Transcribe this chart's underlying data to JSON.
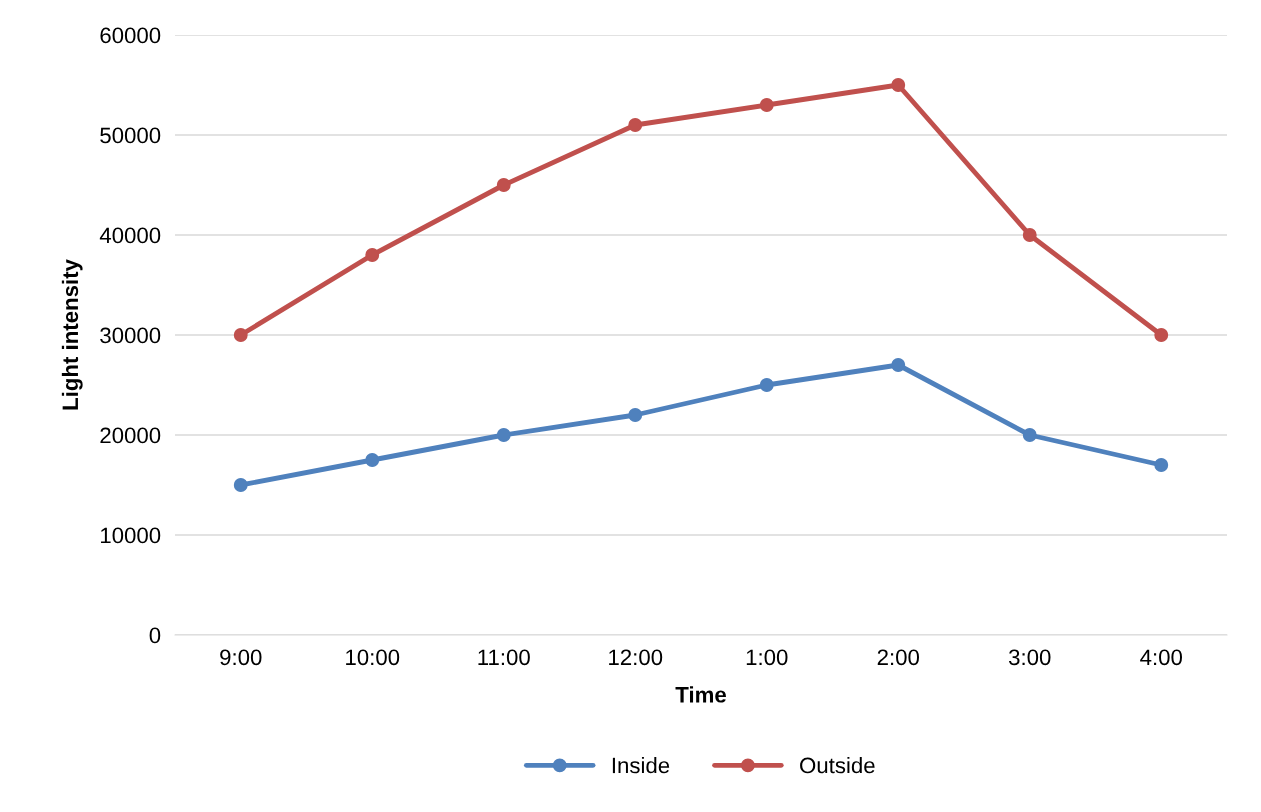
{
  "chart_data": {
    "type": "line",
    "xlabel": "Time",
    "ylabel": "Light intensity",
    "categories": [
      "9:00",
      "10:00",
      "11:00",
      "12:00",
      "1:00",
      "2:00",
      "3:00",
      "4:00"
    ],
    "series": [
      {
        "name": "Inside",
        "color": "#4f81bd",
        "values": [
          15000,
          17500,
          20000,
          22000,
          25000,
          27000,
          20000,
          17000
        ]
      },
      {
        "name": "Outside",
        "color": "#c0504d",
        "values": [
          30000,
          38000,
          45000,
          51000,
          53000,
          55000,
          40000,
          30000
        ]
      }
    ],
    "ylim": [
      0,
      60000
    ],
    "yticks": [
      0,
      10000,
      20000,
      30000,
      40000,
      50000,
      60000
    ],
    "grid": "y",
    "legend": "bottom",
    "marker": "circle",
    "line_style": "solid"
  }
}
